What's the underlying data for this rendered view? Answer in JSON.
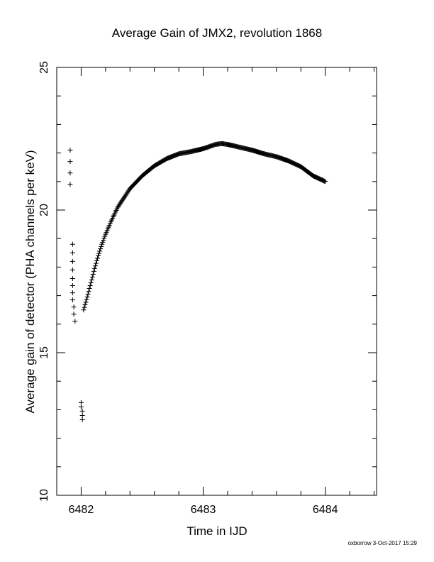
{
  "chart_data": {
    "type": "scatter",
    "title": "Average Gain of JMX2, revolution 1868",
    "xlabel": "Time in IJD",
    "ylabel": "Average gain of detector (PHA channels per keV)",
    "xlim": [
      6481.8,
      6484.42
    ],
    "ylim": [
      10,
      25
    ],
    "x_ticks": [
      6482,
      6483,
      6484
    ],
    "y_ticks": [
      10,
      15,
      20,
      25
    ],
    "x_tick_labels": [
      "6482",
      "6483",
      "6484"
    ],
    "y_tick_labels": [
      "10",
      "15",
      "20",
      "25"
    ],
    "marker": "+",
    "outliers": [
      [
        6481.91,
        22.1
      ],
      [
        6481.91,
        21.7
      ],
      [
        6481.91,
        21.3
      ],
      [
        6481.91,
        20.9
      ],
      [
        6481.93,
        18.8
      ],
      [
        6481.93,
        18.5
      ],
      [
        6481.93,
        18.2
      ],
      [
        6481.93,
        17.9
      ],
      [
        6481.93,
        17.6
      ],
      [
        6481.93,
        17.35
      ],
      [
        6481.93,
        17.1
      ],
      [
        6481.93,
        16.85
      ],
      [
        6481.94,
        16.6
      ],
      [
        6481.94,
        16.35
      ],
      [
        6481.95,
        16.1
      ],
      [
        6482.0,
        13.25
      ],
      [
        6482.0,
        13.1
      ],
      [
        6482.01,
        12.95
      ],
      [
        6482.01,
        12.8
      ],
      [
        6482.01,
        12.65
      ]
    ],
    "main_curve": {
      "x": [
        6482.02,
        6482.05,
        6482.08,
        6482.11,
        6482.14,
        6482.17,
        6482.2,
        6482.25,
        6482.3,
        6482.4,
        6482.5,
        6482.6,
        6482.7,
        6482.8,
        6482.9,
        6483.0,
        6483.1,
        6483.15,
        6483.2,
        6483.3,
        6483.4,
        6483.5,
        6483.6,
        6483.7,
        6483.8,
        6483.9,
        6484.0
      ],
      "y": [
        16.5,
        16.95,
        17.45,
        17.95,
        18.4,
        18.8,
        19.15,
        19.65,
        20.1,
        20.75,
        21.2,
        21.55,
        21.8,
        21.97,
        22.05,
        22.15,
        22.3,
        22.33,
        22.3,
        22.2,
        22.1,
        21.97,
        21.87,
        21.72,
        21.52,
        21.2,
        21.0
      ]
    }
  },
  "footer": {
    "stamp": "oxborrow  3-Oct-2017 15:29"
  }
}
